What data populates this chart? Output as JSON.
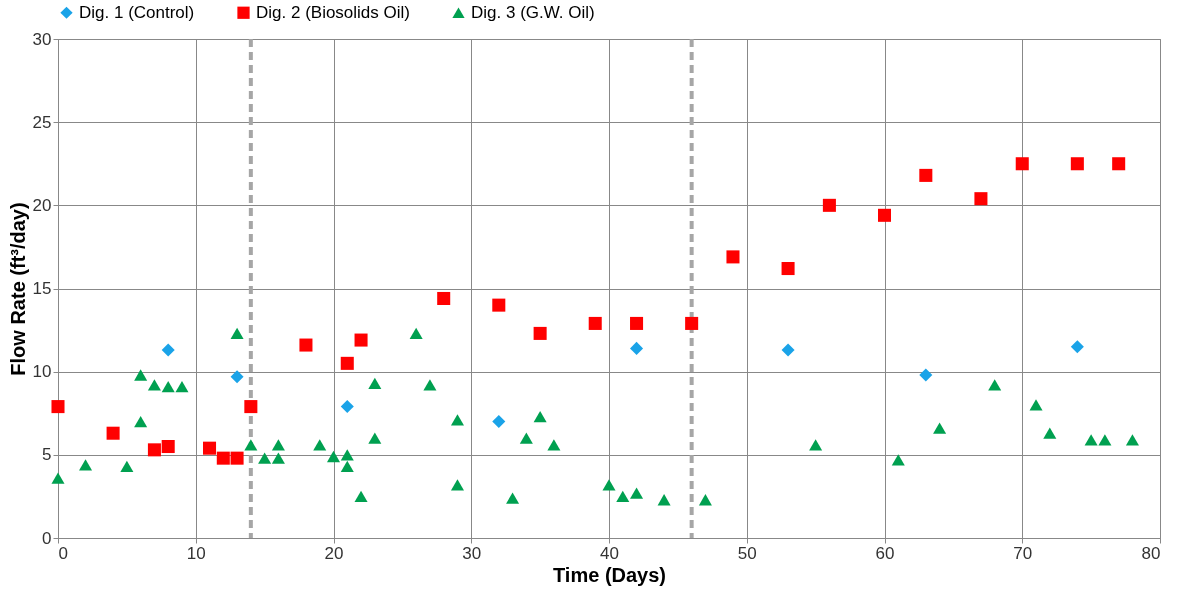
{
  "chart_data": {
    "type": "scatter",
    "xlabel": "Time (Days)",
    "ylabel": "Flow Rate (ft³/day)",
    "xlim": [
      0,
      80
    ],
    "xticks": [
      0,
      10,
      20,
      30,
      40,
      50,
      60,
      70,
      80
    ],
    "ylim": [
      0,
      30
    ],
    "yticks": [
      0,
      5,
      10,
      15,
      20,
      25,
      30
    ],
    "grid": true,
    "legend": "top",
    "series": [
      {
        "name": "Dig. 1 (Control)",
        "color": "#1aa3e8",
        "marker": "diamond",
        "x": [
          8,
          13,
          21,
          32,
          42,
          53,
          63,
          74
        ],
        "values": [
          11.3,
          9.7,
          7.9,
          7.0,
          11.4,
          11.3,
          9.8,
          11.5
        ]
      },
      {
        "name": "Dig. 2 (Biosolids Oil)",
        "color": "#ff0000",
        "marker": "square",
        "x": [
          0,
          4,
          7,
          8,
          11,
          12,
          13,
          14,
          18,
          21,
          22,
          28,
          32,
          35,
          39,
          42,
          46,
          49,
          53,
          56,
          60,
          63,
          67,
          70,
          74,
          77
        ],
        "values": [
          7.9,
          6.3,
          5.3,
          5.5,
          5.4,
          4.8,
          4.8,
          7.9,
          11.6,
          10.5,
          11.9,
          14.4,
          14.0,
          12.3,
          12.9,
          12.9,
          12.9,
          16.9,
          16.2,
          20.0,
          19.4,
          21.8,
          20.4,
          22.5,
          22.5,
          22.5
        ]
      },
      {
        "name": "Dig. 3 (G.W. Oil)",
        "color": "#00a050",
        "marker": "triangle",
        "x": [
          0,
          2,
          5,
          6,
          6,
          7,
          8,
          9,
          13,
          14,
          15,
          16,
          16,
          19,
          20,
          21,
          21,
          22,
          23,
          23,
          26,
          27,
          29,
          29,
          33,
          34,
          35,
          36,
          40,
          41,
          42,
          44,
          47,
          55,
          61,
          64,
          68,
          71,
          72,
          75,
          76,
          78
        ],
        "values": [
          3.6,
          4.4,
          4.3,
          7.0,
          9.8,
          9.2,
          9.1,
          9.1,
          12.3,
          5.6,
          4.8,
          5.6,
          4.8,
          5.6,
          4.9,
          5.0,
          4.3,
          2.5,
          6.0,
          9.3,
          12.3,
          9.2,
          7.1,
          3.2,
          2.4,
          6.0,
          7.3,
          5.6,
          3.2,
          2.5,
          2.7,
          2.3,
          2.3,
          5.6,
          4.7,
          6.6,
          9.2,
          8.0,
          6.3,
          5.9,
          5.9,
          5.9
        ]
      }
    ],
    "ref_lines": [
      {
        "axis": "x",
        "value": 14,
        "color": "#a6a6a6",
        "line_style": "dashed"
      },
      {
        "axis": "x",
        "value": 46,
        "color": "#a6a6a6",
        "line_style": "dashed"
      }
    ]
  }
}
